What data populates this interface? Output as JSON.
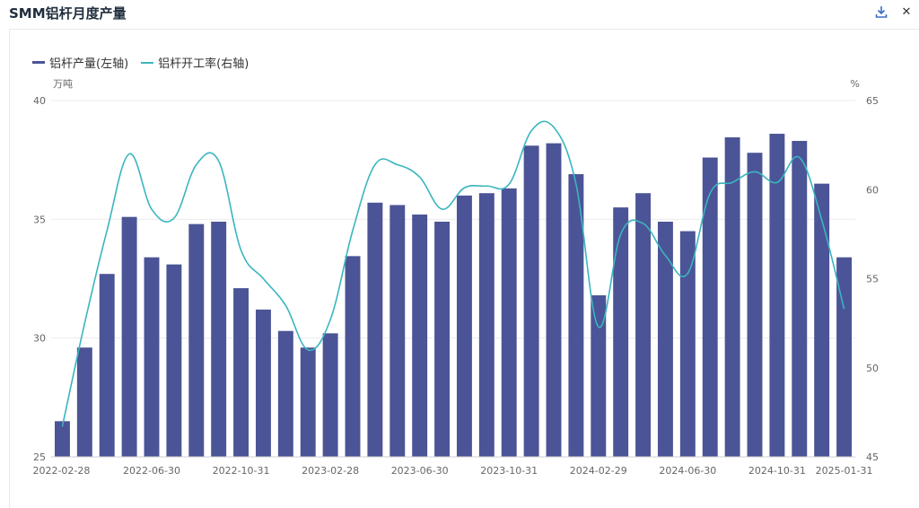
{
  "title": "SMM铝杆月度产量",
  "toolbar": {
    "download_icon": "download-icon",
    "close_icon": "close-icon",
    "close_glyph": "✕"
  },
  "colors": {
    "bar": "#4b5496",
    "line": "#3ab5c0",
    "grid": "#ececec"
  },
  "chart_data": {
    "type": "bar+line",
    "title": "SMM铝杆月度产量",
    "left_unit": "万吨",
    "right_unit": "%",
    "left_ylim": [
      25,
      40
    ],
    "right_ylim": [
      45,
      65
    ],
    "left_ticks": [
      25,
      30,
      35,
      40
    ],
    "right_ticks": [
      45,
      50,
      55,
      60,
      65
    ],
    "categories": [
      "2022-02-28",
      "2022-03-31",
      "2022-04-30",
      "2022-05-31",
      "2022-06-30",
      "2022-07-31",
      "2022-08-31",
      "2022-09-30",
      "2022-10-31",
      "2022-11-30",
      "2022-12-31",
      "2023-01-31",
      "2023-02-28",
      "2023-03-31",
      "2023-04-30",
      "2023-05-31",
      "2023-06-30",
      "2023-07-31",
      "2023-08-31",
      "2023-09-30",
      "2023-10-31",
      "2023-11-30",
      "2023-12-31",
      "2024-01-31",
      "2024-02-29",
      "2024-03-31",
      "2024-04-30",
      "2024-05-31",
      "2024-06-30",
      "2024-07-31",
      "2024-08-31",
      "2024-09-30",
      "2024-10-31",
      "2024-11-30",
      "2024-12-31",
      "2025-01-31"
    ],
    "x_tick_labels": [
      "2022-02-28",
      "2022-06-30",
      "2022-10-31",
      "2023-02-28",
      "2023-06-30",
      "2023-10-31",
      "2024-02-29",
      "2024-06-30",
      "2024-10-31",
      "2025-01-31"
    ],
    "series": [
      {
        "name": "铝杆产量(左轴)",
        "type": "bar",
        "axis": "left",
        "values": [
          26.5,
          29.6,
          32.7,
          35.1,
          33.4,
          33.1,
          34.8,
          34.9,
          32.1,
          31.2,
          30.3,
          29.6,
          30.2,
          33.45,
          35.7,
          35.6,
          35.2,
          34.9,
          36.0,
          36.1,
          36.3,
          38.1,
          38.2,
          36.9,
          31.8,
          35.5,
          36.1,
          34.9,
          34.5,
          37.6,
          38.45,
          37.8,
          38.6,
          38.3,
          36.5,
          33.4
        ]
      },
      {
        "name": "铝杆开工率(右轴)",
        "type": "line",
        "axis": "right",
        "values": [
          46.7,
          52.5,
          57.7,
          62.0,
          58.9,
          58.4,
          61.4,
          61.6,
          56.6,
          55.0,
          53.5,
          51.0,
          52.7,
          57.7,
          61.4,
          61.4,
          60.7,
          58.9,
          60.1,
          60.2,
          60.3,
          63.3,
          63.5,
          60.3,
          52.3,
          57.5,
          58.1,
          56.3,
          55.3,
          59.8,
          60.4,
          61.0,
          60.4,
          61.8,
          58.3,
          53.3
        ]
      }
    ]
  }
}
